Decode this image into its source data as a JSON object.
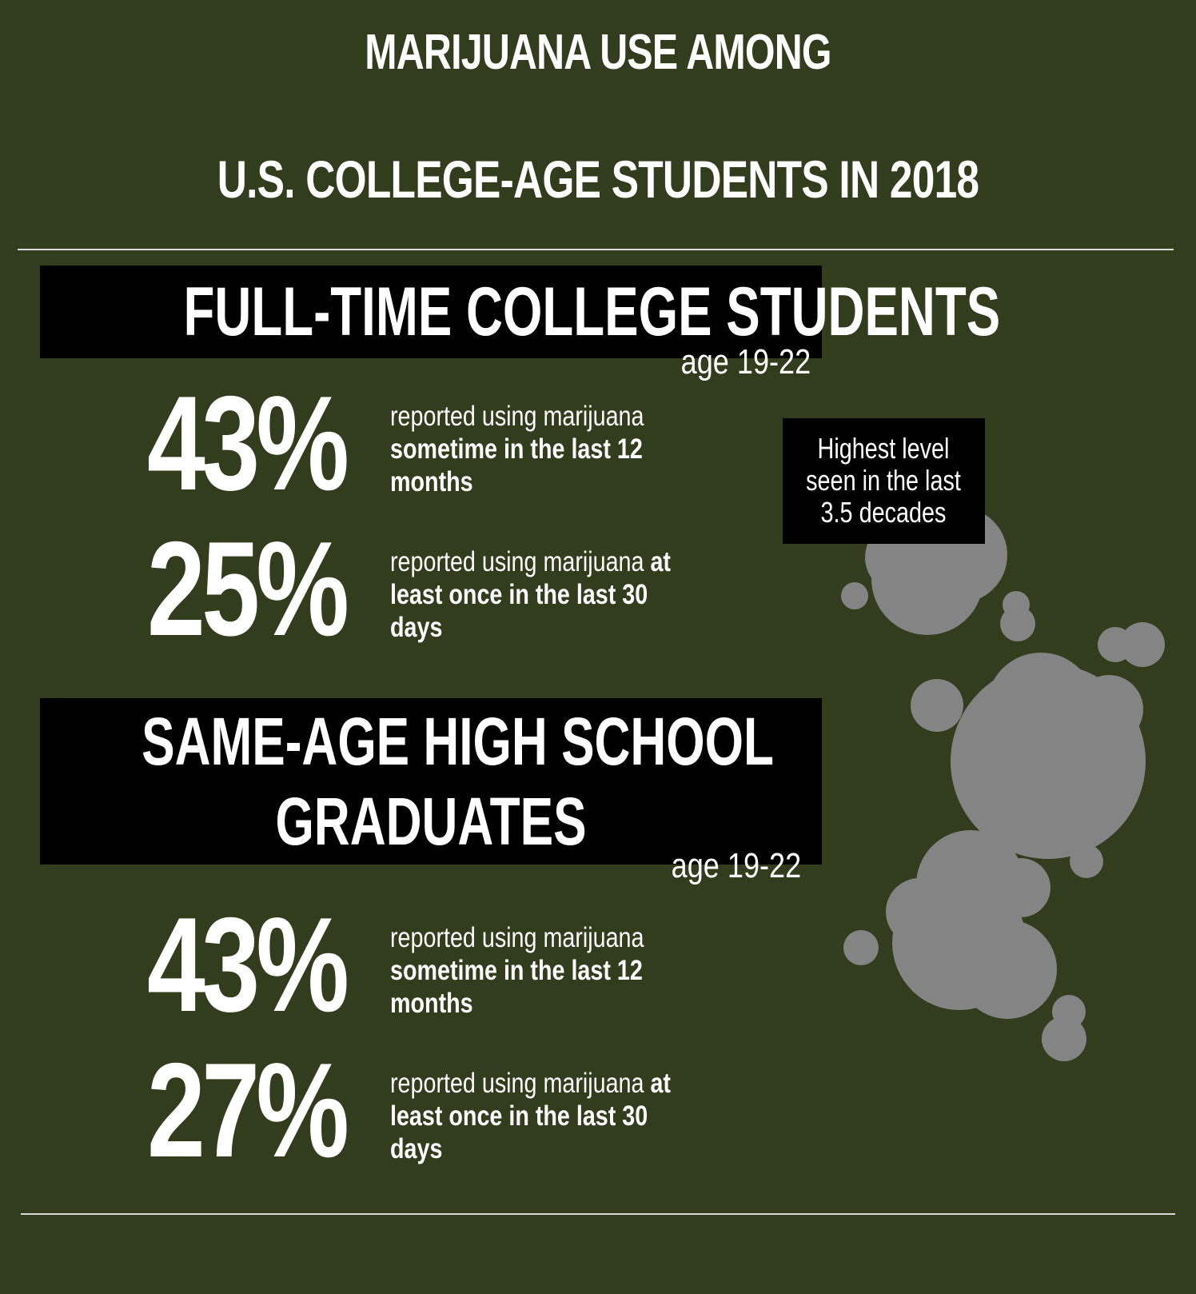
{
  "title": {
    "line1": "MARIJUANA USE AMONG",
    "line2": "U.S. COLLEGE-AGE STUDENTS IN 2018"
  },
  "sections": [
    {
      "header": "FULL-TIME COLLEGE STUDENTS",
      "age": "age 19-22",
      "stats": [
        {
          "value": "43%",
          "text_plain": "reported using marijuana ",
          "text_bold": "sometime in the last 12 months"
        },
        {
          "value": "25%",
          "text_plain": "reported using marijuana ",
          "text_bold": "at least once in the last 30 days"
        }
      ]
    },
    {
      "header_line1": "SAME-AGE HIGH SCHOOL",
      "header_line2": "GRADUATES",
      "age": "age 19-22",
      "stats": [
        {
          "value": "43%",
          "text_plain": "reported using marijuana ",
          "text_bold": "sometime in the last 12 months"
        },
        {
          "value": "27%",
          "text_plain": "reported using marijuana ",
          "text_bold": "at least once in the last 30 days"
        }
      ]
    }
  ],
  "callout": {
    "line1": "Highest level",
    "line2": "seen in the last",
    "line3": "3.5 decades"
  },
  "colors": {
    "background": "#313d1c",
    "header_box": "#000000",
    "smoke": "#848484",
    "text": "#ffffff"
  }
}
